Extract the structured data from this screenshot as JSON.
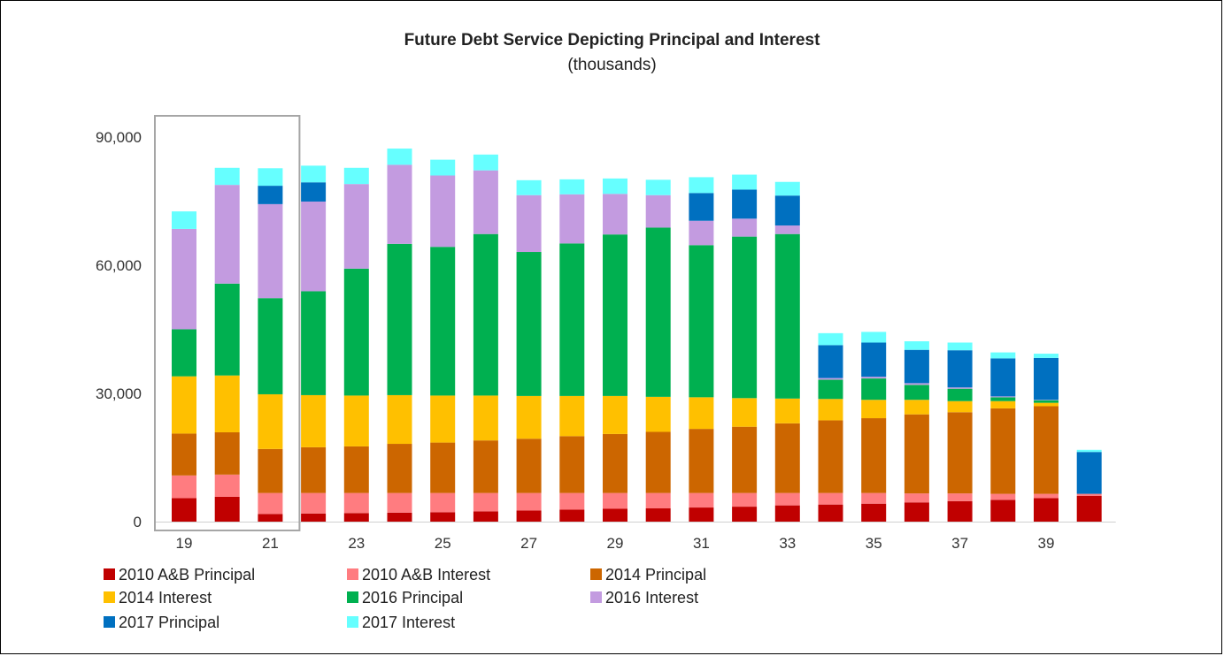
{
  "chart_data": {
    "type": "bar",
    "stacked": true,
    "title": "Future Debt Service Depicting Principal and Interest",
    "subtitle": "(thousands)",
    "xlabel": "",
    "ylabel": "",
    "ylim": [
      0,
      90000
    ],
    "yticks": [
      0,
      30000,
      60000,
      90000
    ],
    "ytick_labels": [
      "0",
      "30,000",
      "60,000",
      "90,000"
    ],
    "categories": [
      "19",
      "20",
      "21",
      "22",
      "23",
      "24",
      "25",
      "26",
      "27",
      "28",
      "29",
      "30",
      "31",
      "32",
      "33",
      "34",
      "35",
      "36",
      "37",
      "38",
      "39",
      "40"
    ],
    "xtick_labels": [
      "19",
      "",
      "21",
      "",
      "23",
      "",
      "25",
      "",
      "27",
      "",
      "29",
      "",
      "31",
      "",
      "33",
      "",
      "35",
      "",
      "37",
      "",
      "39",
      ""
    ],
    "highlight_box_categories": [
      "19",
      "20",
      "21"
    ],
    "legend_position": "bottom",
    "grid": false,
    "series": [
      {
        "name": "2010 A&B Principal",
        "color": "#c00000",
        "values": [
          5500,
          5800,
          1800,
          1900,
          2000,
          2100,
          2200,
          2400,
          2600,
          2800,
          3000,
          3100,
          3300,
          3500,
          3800,
          4000,
          4200,
          4500,
          4800,
          5100,
          5500,
          6000
        ]
      },
      {
        "name": "2010 A&B Interest",
        "color": "#ff7c80",
        "values": [
          5300,
          5200,
          4900,
          4800,
          4700,
          4600,
          4500,
          4300,
          4100,
          3900,
          3700,
          3600,
          3400,
          3200,
          2900,
          2700,
          2500,
          2100,
          1800,
          1400,
          1000,
          500
        ]
      },
      {
        "name": "2014 Principal",
        "color": "#cc6600",
        "values": [
          9800,
          9900,
          10300,
          10700,
          10900,
          11500,
          11800,
          12300,
          12700,
          13300,
          13800,
          14300,
          15000,
          15500,
          16300,
          17000,
          17500,
          18500,
          19000,
          20000,
          20500,
          0
        ]
      },
      {
        "name": "2014 Interest",
        "color": "#ffc000",
        "values": [
          13400,
          13300,
          12800,
          12200,
          11900,
          11400,
          11000,
          10500,
          10000,
          9400,
          8900,
          8200,
          7400,
          6700,
          5800,
          5000,
          4300,
          3400,
          2600,
          1700,
          800,
          0
        ]
      },
      {
        "name": "2016 Principal",
        "color": "#00b050",
        "values": [
          11000,
          21500,
          22500,
          24300,
          29700,
          35400,
          34800,
          37800,
          33700,
          35700,
          37800,
          39600,
          35600,
          37800,
          38500,
          4500,
          5000,
          3500,
          2900,
          900,
          600,
          0
        ]
      },
      {
        "name": "2016 Interest",
        "color": "#c39be0",
        "values": [
          23500,
          23100,
          22000,
          21000,
          19800,
          18500,
          16700,
          14900,
          13300,
          11500,
          9500,
          7600,
          5700,
          4200,
          2000,
          400,
          400,
          400,
          300,
          200,
          100,
          0
        ]
      },
      {
        "name": "2017 Principal",
        "color": "#0070c0",
        "values": [
          0,
          0,
          4300,
          4500,
          0,
          0,
          0,
          0,
          0,
          0,
          0,
          0,
          6500,
          6800,
          7000,
          7700,
          8000,
          7800,
          8700,
          8900,
          9800,
          9800
        ]
      },
      {
        "name": "2017 Interest",
        "color": "#66ffff",
        "values": [
          4100,
          4000,
          4100,
          3900,
          3800,
          3800,
          3700,
          3700,
          3500,
          3500,
          3600,
          3600,
          3700,
          3500,
          3200,
          2800,
          2500,
          2000,
          1800,
          1400,
          1000,
          500
        ]
      }
    ]
  }
}
